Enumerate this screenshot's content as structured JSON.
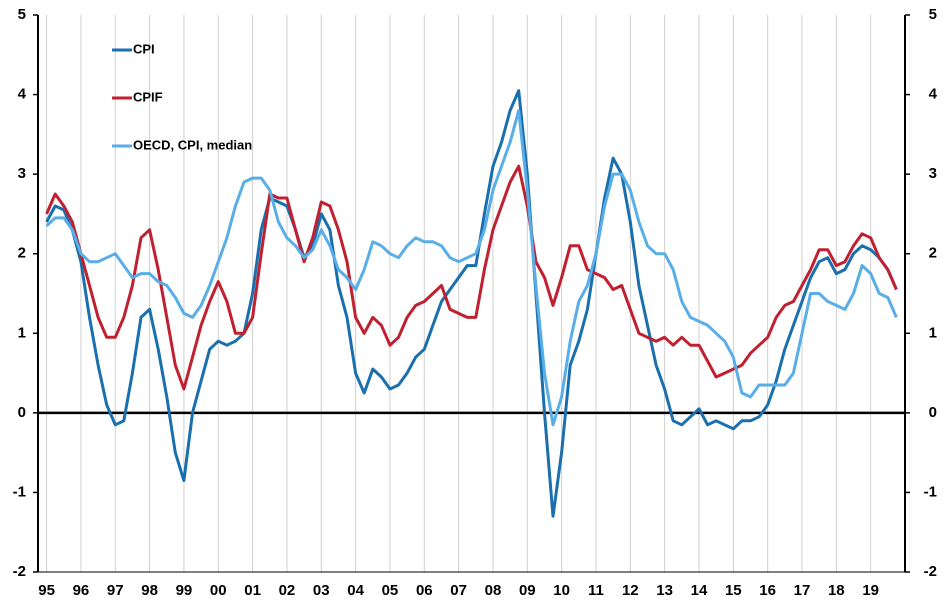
{
  "chart_data": {
    "type": "line",
    "x": [
      1995,
      1995.25,
      1995.5,
      1995.75,
      1996,
      1996.25,
      1996.5,
      1996.75,
      1997,
      1997.25,
      1997.5,
      1997.75,
      1998,
      1998.25,
      1998.5,
      1998.75,
      1999,
      1999.25,
      1999.5,
      1999.75,
      2000,
      2000.25,
      2000.5,
      2000.75,
      2001,
      2001.25,
      2001.5,
      2001.75,
      2002,
      2002.25,
      2002.5,
      2002.75,
      2003,
      2003.25,
      2003.5,
      2003.75,
      2004,
      2004.25,
      2004.5,
      2004.75,
      2005,
      2005.25,
      2005.5,
      2005.75,
      2006,
      2006.25,
      2006.5,
      2006.75,
      2007,
      2007.25,
      2007.5,
      2007.75,
      2008,
      2008.25,
      2008.5,
      2008.75,
      2009,
      2009.25,
      2009.5,
      2009.75,
      2010,
      2010.25,
      2010.5,
      2010.75,
      2011,
      2011.25,
      2011.5,
      2011.75,
      2012,
      2012.25,
      2012.5,
      2012.75,
      2013,
      2013.25,
      2013.5,
      2013.75,
      2014,
      2014.25,
      2014.5,
      2014.75,
      2015,
      2015.25,
      2015.5,
      2015.75,
      2016,
      2016.25,
      2016.5,
      2016.75,
      2017,
      2017.25,
      2017.5,
      2017.75,
      2018,
      2018.25,
      2018.5,
      2018.75,
      2019,
      2019.25,
      2019.5,
      2019.75
    ],
    "series": [
      {
        "name": "CPI",
        "color": "#1a6fad",
        "values": [
          2.4,
          2.6,
          2.55,
          2.3,
          1.9,
          1.2,
          0.6,
          0.1,
          -0.15,
          -0.1,
          0.5,
          1.2,
          1.3,
          0.8,
          0.2,
          -0.5,
          -0.85,
          0.0,
          0.4,
          0.8,
          0.9,
          0.85,
          0.9,
          1.0,
          1.5,
          2.3,
          2.7,
          2.65,
          2.6,
          2.3,
          1.95,
          2.1,
          2.5,
          2.3,
          1.6,
          1.2,
          0.5,
          0.25,
          0.55,
          0.45,
          0.3,
          0.35,
          0.5,
          0.7,
          0.8,
          1.1,
          1.4,
          1.55,
          1.7,
          1.85,
          1.85,
          2.5,
          3.1,
          3.4,
          3.8,
          4.05,
          3.0,
          1.5,
          0.0,
          -1.3,
          -0.5,
          0.6,
          0.9,
          1.3,
          2.0,
          2.7,
          3.2,
          3.0,
          2.4,
          1.6,
          1.1,
          0.6,
          0.3,
          -0.1,
          -0.15,
          -0.05,
          0.05,
          -0.15,
          -0.1,
          -0.15,
          -0.2,
          -0.1,
          -0.1,
          -0.05,
          0.1,
          0.4,
          0.8,
          1.1,
          1.4,
          1.7,
          1.9,
          1.95,
          1.75,
          1.8,
          2.0,
          2.1,
          2.05,
          1.95,
          1.8,
          1.55
        ]
      },
      {
        "name": "CPIF",
        "color": "#c0202f",
        "values": [
          2.5,
          2.75,
          2.6,
          2.4,
          2.0,
          1.6,
          1.2,
          0.95,
          0.95,
          1.2,
          1.6,
          2.2,
          2.3,
          1.8,
          1.2,
          0.6,
          0.3,
          0.7,
          1.1,
          1.4,
          1.65,
          1.4,
          1.0,
          1.0,
          1.2,
          2.0,
          2.75,
          2.7,
          2.7,
          2.3,
          1.9,
          2.2,
          2.65,
          2.6,
          2.3,
          1.9,
          1.2,
          1.0,
          1.2,
          1.1,
          0.85,
          0.95,
          1.2,
          1.35,
          1.4,
          1.5,
          1.6,
          1.3,
          1.25,
          1.2,
          1.2,
          1.8,
          2.3,
          2.6,
          2.9,
          3.1,
          2.6,
          1.9,
          1.7,
          1.35,
          1.7,
          2.1,
          2.1,
          1.8,
          1.75,
          1.7,
          1.55,
          1.6,
          1.3,
          1.0,
          0.95,
          0.9,
          0.95,
          0.85,
          0.95,
          0.85,
          0.85,
          0.65,
          0.45,
          0.5,
          0.55,
          0.6,
          0.75,
          0.85,
          0.95,
          1.2,
          1.35,
          1.4,
          1.6,
          1.8,
          2.05,
          2.05,
          1.85,
          1.9,
          2.1,
          2.25,
          2.2,
          1.95,
          1.8,
          1.55
        ]
      },
      {
        "name": "OECD, CPI, median",
        "color": "#5aaee8",
        "values": [
          2.35,
          2.45,
          2.45,
          2.3,
          2.0,
          1.9,
          1.9,
          1.95,
          2.0,
          1.85,
          1.7,
          1.75,
          1.75,
          1.65,
          1.6,
          1.45,
          1.25,
          1.2,
          1.35,
          1.6,
          1.9,
          2.2,
          2.6,
          2.9,
          2.95,
          2.95,
          2.8,
          2.4,
          2.2,
          2.1,
          1.95,
          2.05,
          2.3,
          2.1,
          1.8,
          1.7,
          1.55,
          1.8,
          2.15,
          2.1,
          2.0,
          1.95,
          2.1,
          2.2,
          2.15,
          2.15,
          2.1,
          1.95,
          1.9,
          1.95,
          2.0,
          2.3,
          2.8,
          3.1,
          3.4,
          3.8,
          2.8,
          1.6,
          0.5,
          -0.15,
          0.2,
          0.9,
          1.4,
          1.6,
          2.0,
          2.6,
          3.0,
          3.0,
          2.8,
          2.4,
          2.1,
          2.0,
          2.0,
          1.8,
          1.4,
          1.2,
          1.15,
          1.1,
          1.0,
          0.9,
          0.7,
          0.25,
          0.2,
          0.35,
          0.35,
          0.35,
          0.35,
          0.5,
          1.0,
          1.5,
          1.5,
          1.4,
          1.35,
          1.3,
          1.5,
          1.85,
          1.75,
          1.5,
          1.45,
          1.2
        ]
      }
    ],
    "xlim": [
      1994.75,
      2020
    ],
    "xticks": [
      {
        "value": 1995,
        "label": "95"
      },
      {
        "value": 1996,
        "label": "96"
      },
      {
        "value": 1997,
        "label": "97"
      },
      {
        "value": 1998,
        "label": "98"
      },
      {
        "value": 1999,
        "label": "99"
      },
      {
        "value": 2000,
        "label": "00"
      },
      {
        "value": 2001,
        "label": "01"
      },
      {
        "value": 2002,
        "label": "02"
      },
      {
        "value": 2003,
        "label": "03"
      },
      {
        "value": 2004,
        "label": "04"
      },
      {
        "value": 2005,
        "label": "05"
      },
      {
        "value": 2006,
        "label": "06"
      },
      {
        "value": 2007,
        "label": "07"
      },
      {
        "value": 2008,
        "label": "08"
      },
      {
        "value": 2009,
        "label": "09"
      },
      {
        "value": 2010,
        "label": "10"
      },
      {
        "value": 2011,
        "label": "11"
      },
      {
        "value": 2012,
        "label": "12"
      },
      {
        "value": 2013,
        "label": "13"
      },
      {
        "value": 2014,
        "label": "14"
      },
      {
        "value": 2015,
        "label": "15"
      },
      {
        "value": 2016,
        "label": "16"
      },
      {
        "value": 2017,
        "label": "17"
      },
      {
        "value": 2018,
        "label": "18"
      },
      {
        "value": 2019,
        "label": "19"
      }
    ],
    "ylim": [
      -2,
      5
    ],
    "yticks": [
      -2,
      -1,
      0,
      1,
      2,
      3,
      4,
      5
    ],
    "y2lim": [
      -2,
      5
    ],
    "y2ticks": [
      -2,
      -1,
      0,
      1,
      2,
      3,
      4,
      5
    ],
    "grid": true,
    "legend": "upper left"
  }
}
